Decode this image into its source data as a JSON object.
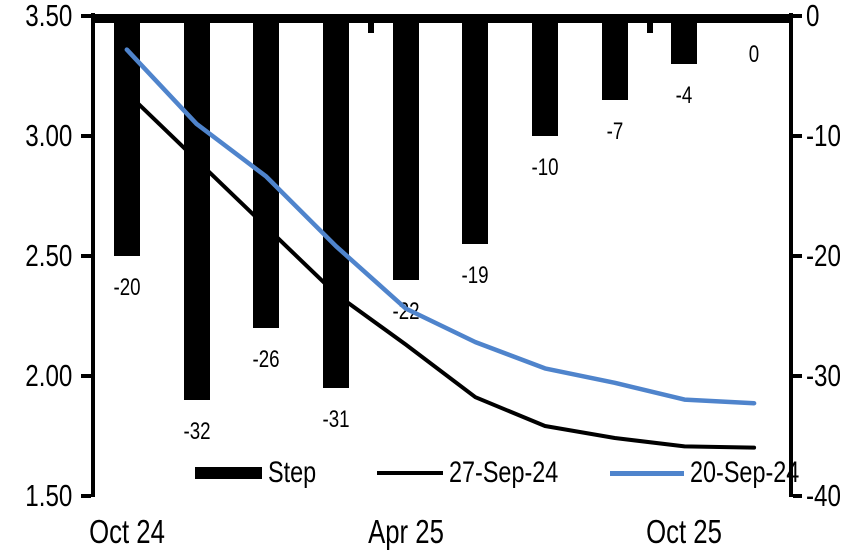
{
  "chart_data": {
    "type": "combo-bar-line-dual-axis",
    "n_categories": 10,
    "grid": "off",
    "x_axis": {
      "tick_labels": [
        {
          "index": 0,
          "label": "Oct 24"
        },
        {
          "index": 4,
          "label": "Apr 25"
        },
        {
          "index": 8,
          "label": "Oct 25"
        }
      ],
      "boundary_tick_indices": [
        4,
        8
      ]
    },
    "left_axis": {
      "range": [
        1.5,
        3.5
      ],
      "tick_labels": [
        "3.50",
        "3.00",
        "2.50",
        "2.00",
        "1.50"
      ]
    },
    "right_axis": {
      "range": [
        -40,
        0
      ],
      "tick_labels": [
        "0",
        "-10",
        "-20",
        "-30",
        "-40"
      ]
    },
    "bar_series": {
      "name": "Step",
      "axis": "right",
      "color": "#000000",
      "values": [
        -20,
        -32,
        -26,
        -31,
        -22,
        -19,
        -10,
        -7,
        -4,
        0
      ],
      "data_labels": [
        "-20",
        "-32",
        "-26",
        "-31",
        "-22",
        "-19",
        "-10",
        "-7",
        "-4",
        "0"
      ]
    },
    "line_series": [
      {
        "name": "27-Sep-24",
        "axis": "left",
        "color": "#000000",
        "stroke_width": 4,
        "values": [
          3.18,
          2.9,
          2.62,
          2.34,
          2.13,
          1.91,
          1.79,
          1.74,
          1.705,
          1.7
        ]
      },
      {
        "name": "20-Sep-24",
        "axis": "left",
        "color": "#4F84CC",
        "stroke_width": 4.5,
        "values": [
          3.36,
          3.05,
          2.83,
          2.54,
          2.28,
          2.14,
          2.03,
          1.97,
          1.9,
          1.885
        ]
      }
    ],
    "legend": [
      {
        "label": "Step",
        "swatch": "bar",
        "color": "#000000"
      },
      {
        "label": "27-Sep-24",
        "swatch": "line",
        "color": "#000000"
      },
      {
        "label": "20-Sep-24",
        "swatch": "line",
        "color": "#4F84CC"
      }
    ]
  }
}
